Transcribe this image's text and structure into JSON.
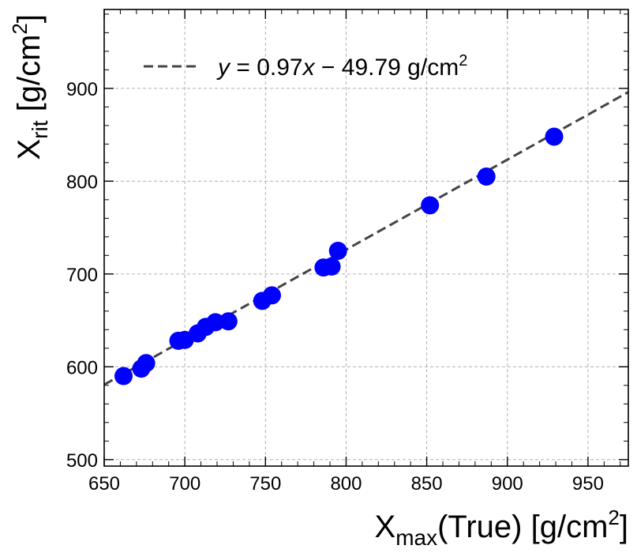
{
  "chart_data": {
    "type": "scatter",
    "xlim": [
      650,
      975
    ],
    "ylim": [
      493,
      985
    ],
    "x_ticks": [
      650,
      700,
      750,
      800,
      850,
      900,
      950
    ],
    "y_ticks": [
      500,
      600,
      700,
      800,
      900
    ],
    "grid": true,
    "xlabel": {
      "main": "X",
      "sub": "max",
      "rest": "(True) [g/cm",
      "sup": "2",
      "end": "]"
    },
    "ylabel": {
      "main": "X",
      "sub": "rit",
      "rest": " [g/cm",
      "sup": "2",
      "end": "]"
    },
    "legend": {
      "placement": "top-left",
      "label": "y = 0.97x − 49.79 g/cm²",
      "parts": {
        "y": "y",
        "eq": " = 0.97",
        "x": "x",
        "rest": " − 49.79 g/cm",
        "sup": "2"
      }
    },
    "fit_line": {
      "slope": 0.97,
      "intercept": -49.79,
      "color": "#444444",
      "style": "dashed"
    },
    "points_color": "#0000ff",
    "points": [
      {
        "x": 662,
        "y": 590
      },
      {
        "x": 673,
        "y": 598
      },
      {
        "x": 676,
        "y": 604
      },
      {
        "x": 696,
        "y": 628
      },
      {
        "x": 700,
        "y": 629
      },
      {
        "x": 708,
        "y": 636
      },
      {
        "x": 713,
        "y": 643
      },
      {
        "x": 719,
        "y": 648
      },
      {
        "x": 727,
        "y": 649
      },
      {
        "x": 748,
        "y": 671
      },
      {
        "x": 754,
        "y": 677
      },
      {
        "x": 786,
        "y": 707
      },
      {
        "x": 791,
        "y": 708
      },
      {
        "x": 795,
        "y": 725
      },
      {
        "x": 852,
        "y": 774
      },
      {
        "x": 887,
        "y": 805
      },
      {
        "x": 929,
        "y": 848
      }
    ]
  }
}
